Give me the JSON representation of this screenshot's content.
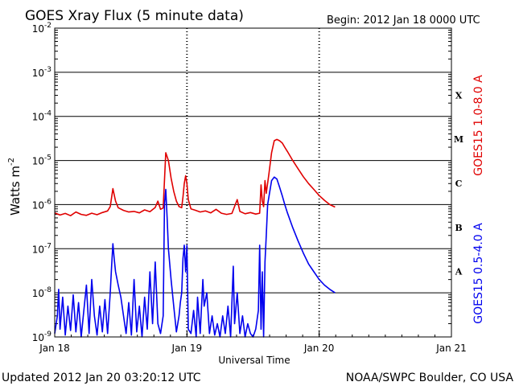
{
  "chart_data": {
    "type": "line",
    "title": "GOES Xray Flux (5 minute data)",
    "begin_label": "Begin:  2012 Jan 18 0000 UTC",
    "ylabel_main": "Watts m",
    "ylabel_exp": "-2",
    "xlabel": "Universal Time",
    "y_scale": "log",
    "ylim": [
      1e-09,
      0.01
    ],
    "xlim_days": [
      0,
      3
    ],
    "grid": "horizontal lines at each decade, dotted verticals at day boundaries",
    "y_ticks": [
      {
        "base": "10",
        "exp": "-9",
        "value": 1e-09
      },
      {
        "base": "10",
        "exp": "-8",
        "value": 1e-08
      },
      {
        "base": "10",
        "exp": "-7",
        "value": 1e-07
      },
      {
        "base": "10",
        "exp": "-6",
        "value": 1e-06
      },
      {
        "base": "10",
        "exp": "-5",
        "value": 1e-05
      },
      {
        "base": "10",
        "exp": "-4",
        "value": 0.0001
      },
      {
        "base": "10",
        "exp": "-3",
        "value": 0.001
      },
      {
        "base": "10",
        "exp": "-2",
        "value": 0.01
      }
    ],
    "x_ticks": [
      {
        "label": "Jan 18",
        "day": 0
      },
      {
        "label": "Jan 19",
        "day": 1
      },
      {
        "label": "Jan 20",
        "day": 2
      },
      {
        "label": "Jan 21",
        "day": 3
      }
    ],
    "flare_classes": [
      {
        "label": "A",
        "value": 1e-08
      },
      {
        "label": "B",
        "value": 1e-07
      },
      {
        "label": "C",
        "value": 1e-06
      },
      {
        "label": "M",
        "value": 1e-05
      },
      {
        "label": "X",
        "value": 0.0001
      }
    ],
    "series": [
      {
        "name": "GOES15 1.0-8.0 A",
        "color": "#e00000",
        "points": [
          [
            0.0,
            6.5e-07
          ],
          [
            0.04,
            5.8e-07
          ],
          [
            0.08,
            6.3e-07
          ],
          [
            0.12,
            5.6e-07
          ],
          [
            0.16,
            6.8e-07
          ],
          [
            0.2,
            6e-07
          ],
          [
            0.24,
            5.7e-07
          ],
          [
            0.28,
            6.4e-07
          ],
          [
            0.32,
            5.9e-07
          ],
          [
            0.36,
            6.6e-07
          ],
          [
            0.4,
            7.2e-07
          ],
          [
            0.42,
            9e-07
          ],
          [
            0.44,
            2.3e-06
          ],
          [
            0.46,
            1.2e-06
          ],
          [
            0.48,
            8.5e-07
          ],
          [
            0.52,
            7.4e-07
          ],
          [
            0.56,
            6.8e-07
          ],
          [
            0.6,
            7e-07
          ],
          [
            0.64,
            6.5e-07
          ],
          [
            0.68,
            7.6e-07
          ],
          [
            0.72,
            6.9e-07
          ],
          [
            0.76,
            8.6e-07
          ],
          [
            0.78,
            1.2e-06
          ],
          [
            0.8,
            7.8e-07
          ],
          [
            0.82,
            8.4e-07
          ],
          [
            0.84,
            1.5e-05
          ],
          [
            0.86,
            1e-05
          ],
          [
            0.88,
            4e-06
          ],
          [
            0.9,
            2e-06
          ],
          [
            0.92,
            1.2e-06
          ],
          [
            0.94,
            9e-07
          ],
          [
            0.96,
            8.5e-07
          ],
          [
            0.97,
            1.5e-06
          ],
          [
            0.98,
            3e-06
          ],
          [
            0.99,
            4.5e-06
          ],
          [
            1.0,
            3e-06
          ],
          [
            1.01,
            1.3e-06
          ],
          [
            1.03,
            8e-07
          ],
          [
            1.06,
            7.5e-07
          ],
          [
            1.1,
            6.8e-07
          ],
          [
            1.14,
            7.2e-07
          ],
          [
            1.18,
            6.5e-07
          ],
          [
            1.22,
            7.8e-07
          ],
          [
            1.26,
            6.4e-07
          ],
          [
            1.3,
            6e-07
          ],
          [
            1.34,
            6.3e-07
          ],
          [
            1.38,
            1.3e-06
          ],
          [
            1.4,
            7e-07
          ],
          [
            1.44,
            6.2e-07
          ],
          [
            1.48,
            6.6e-07
          ],
          [
            1.52,
            6.1e-07
          ],
          [
            1.55,
            6.4e-07
          ],
          [
            1.56,
            2.8e-06
          ],
          [
            1.57,
            1.2e-06
          ],
          [
            1.58,
            9e-07
          ],
          [
            1.59,
            3.5e-06
          ],
          [
            1.6,
            1.8e-06
          ],
          [
            1.62,
            5e-06
          ],
          [
            1.64,
            1.5e-05
          ],
          [
            1.66,
            2.8e-05
          ],
          [
            1.68,
            3e-05
          ],
          [
            1.7,
            2.8e-05
          ],
          [
            1.72,
            2.5e-05
          ],
          [
            1.74,
            2e-05
          ],
          [
            1.76,
            1.6e-05
          ],
          [
            1.8,
            1e-05
          ],
          [
            1.84,
            6.5e-06
          ],
          [
            1.88,
            4.3e-06
          ],
          [
            1.92,
            3e-06
          ],
          [
            1.96,
            2.2e-06
          ],
          [
            2.0,
            1.6e-06
          ],
          [
            2.04,
            1.25e-06
          ],
          [
            2.08,
            1e-06
          ],
          [
            2.12,
            8.8e-07
          ]
        ]
      },
      {
        "name": "GOES15 0.5-4.0 A",
        "color": "#0000ee",
        "points": [
          [
            0.0,
            1.2e-09
          ],
          [
            0.02,
            3e-09
          ],
          [
            0.03,
            1.2e-08
          ],
          [
            0.04,
            1.5e-09
          ],
          [
            0.06,
            8e-09
          ],
          [
            0.08,
            1.1e-09
          ],
          [
            0.1,
            5e-09
          ],
          [
            0.12,
            1.4e-09
          ],
          [
            0.14,
            9e-09
          ],
          [
            0.16,
            1.3e-09
          ],
          [
            0.18,
            6e-09
          ],
          [
            0.2,
            1e-09
          ],
          [
            0.22,
            4e-09
          ],
          [
            0.24,
            1.5e-08
          ],
          [
            0.26,
            1.2e-09
          ],
          [
            0.28,
            2e-08
          ],
          [
            0.3,
            3e-09
          ],
          [
            0.32,
            1.1e-09
          ],
          [
            0.34,
            5e-09
          ],
          [
            0.36,
            1.3e-09
          ],
          [
            0.38,
            7e-09
          ],
          [
            0.4,
            1.2e-09
          ],
          [
            0.42,
            1e-08
          ],
          [
            0.43,
            4e-08
          ],
          [
            0.44,
            1.3e-07
          ],
          [
            0.45,
            6e-08
          ],
          [
            0.46,
            3e-08
          ],
          [
            0.48,
            1.5e-08
          ],
          [
            0.5,
            8e-09
          ],
          [
            0.52,
            3e-09
          ],
          [
            0.54,
            1.2e-09
          ],
          [
            0.56,
            6e-09
          ],
          [
            0.58,
            1.1e-09
          ],
          [
            0.6,
            2e-08
          ],
          [
            0.62,
            1.3e-09
          ],
          [
            0.64,
            5e-09
          ],
          [
            0.66,
            1e-09
          ],
          [
            0.68,
            8e-09
          ],
          [
            0.7,
            1.5e-09
          ],
          [
            0.72,
            3e-08
          ],
          [
            0.74,
            2e-09
          ],
          [
            0.76,
            5e-08
          ],
          [
            0.78,
            2e-09
          ],
          [
            0.8,
            1.2e-09
          ],
          [
            0.82,
            3e-09
          ],
          [
            0.83,
            1e-06
          ],
          [
            0.84,
            2.2e-06
          ],
          [
            0.85,
            5e-07
          ],
          [
            0.86,
            1e-07
          ],
          [
            0.88,
            2e-08
          ],
          [
            0.9,
            5e-09
          ],
          [
            0.92,
            1.3e-09
          ],
          [
            0.94,
            3e-09
          ],
          [
            0.95,
            6e-09
          ],
          [
            0.96,
            1e-08
          ],
          [
            0.97,
            6e-08
          ],
          [
            0.98,
            1.2e-07
          ],
          [
            0.99,
            3e-08
          ],
          [
            1.0,
            1.2e-07
          ],
          [
            1.01,
            1.5e-09
          ],
          [
            1.03,
            1.2e-09
          ],
          [
            1.05,
            4e-09
          ],
          [
            1.07,
            1e-09
          ],
          [
            1.08,
            8e-09
          ],
          [
            1.1,
            1.2e-09
          ],
          [
            1.12,
            2e-08
          ],
          [
            1.13,
            5e-09
          ],
          [
            1.15,
            1e-08
          ],
          [
            1.17,
            1.2e-09
          ],
          [
            1.19,
            3e-09
          ],
          [
            1.21,
            1.1e-09
          ],
          [
            1.23,
            2e-09
          ],
          [
            1.25,
            1e-09
          ],
          [
            1.27,
            3e-09
          ],
          [
            1.29,
            1.2e-09
          ],
          [
            1.31,
            5e-09
          ],
          [
            1.33,
            1e-09
          ],
          [
            1.35,
            4e-08
          ],
          [
            1.36,
            2e-09
          ],
          [
            1.38,
            1e-08
          ],
          [
            1.4,
            1.2e-09
          ],
          [
            1.42,
            3e-09
          ],
          [
            1.44,
            1e-09
          ],
          [
            1.46,
            2e-09
          ],
          [
            1.48,
            1.2e-09
          ],
          [
            1.5,
            1e-09
          ],
          [
            1.52,
            1.5e-09
          ],
          [
            1.54,
            4e-09
          ],
          [
            1.55,
            1.2e-07
          ],
          [
            1.56,
            1.5e-09
          ],
          [
            1.57,
            3e-08
          ],
          [
            1.58,
            1e-09
          ],
          [
            1.59,
            5e-08
          ],
          [
            1.6,
            2e-07
          ],
          [
            1.61,
            1e-06
          ],
          [
            1.62,
            1.5e-06
          ],
          [
            1.64,
            3.5e-06
          ],
          [
            1.66,
            4.2e-06
          ],
          [
            1.68,
            3.8e-06
          ],
          [
            1.7,
            2.5e-06
          ],
          [
            1.72,
            1.6e-06
          ],
          [
            1.74,
            1e-06
          ],
          [
            1.76,
            6.5e-07
          ],
          [
            1.8,
            3e-07
          ],
          [
            1.84,
            1.5e-07
          ],
          [
            1.88,
            8e-08
          ],
          [
            1.92,
            4.5e-08
          ],
          [
            1.96,
            3e-08
          ],
          [
            2.0,
            2e-08
          ],
          [
            2.04,
            1.5e-08
          ],
          [
            2.08,
            1.2e-08
          ],
          [
            2.12,
            1e-08
          ]
        ]
      }
    ]
  },
  "footer": {
    "updated": "Updated 2012 Jan 20 03:20:12 UTC",
    "credit": "NOAA/SWPC Boulder, CO USA"
  }
}
